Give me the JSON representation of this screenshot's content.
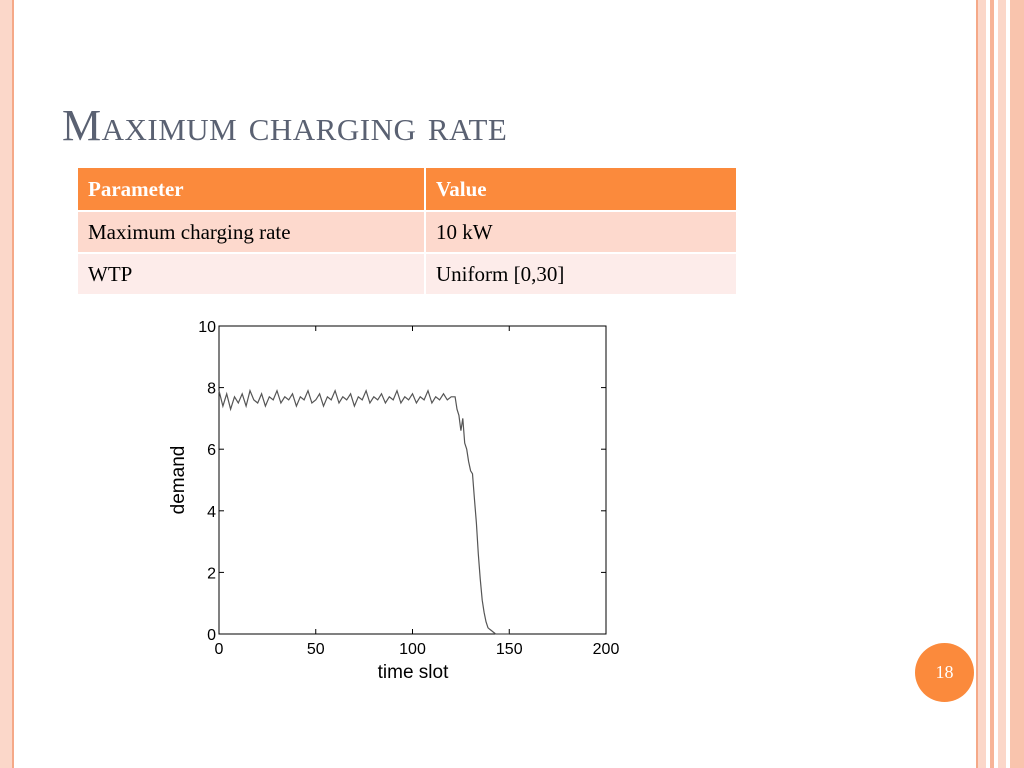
{
  "slide": {
    "title": "Maximum charging rate",
    "page_number": "18",
    "colors": {
      "accent": "#fb8a3c",
      "title": "#5a6172",
      "row_odd": "#fdd9cd",
      "row_even": "#fdecea"
    }
  },
  "table": {
    "headers": [
      "Parameter",
      "Value"
    ],
    "rows": [
      [
        "Maximum charging rate",
        "10 kW"
      ],
      [
        "WTP",
        "Uniform [0,30]"
      ]
    ]
  },
  "chart_data": {
    "type": "line",
    "title": "",
    "xlabel": "time slot",
    "ylabel": "demand",
    "xlim": [
      0,
      200
    ],
    "ylim": [
      0,
      10
    ],
    "xticks": [
      0,
      50,
      100,
      150,
      200
    ],
    "yticks": [
      0,
      2,
      4,
      6,
      8,
      10
    ],
    "grid": false,
    "series": [
      {
        "x": [
          0,
          2,
          4,
          6,
          8,
          10,
          12,
          14,
          16,
          18,
          20,
          22,
          24,
          26,
          28,
          30,
          32,
          34,
          36,
          38,
          40,
          42,
          44,
          46,
          48,
          50,
          52,
          54,
          56,
          58,
          60,
          62,
          64,
          66,
          68,
          70,
          72,
          74,
          76,
          78,
          80,
          82,
          84,
          86,
          88,
          90,
          92,
          94,
          96,
          98,
          100,
          102,
          104,
          106,
          108,
          110,
          112,
          114,
          116,
          118,
          120,
          122,
          123,
          124,
          125,
          126,
          127,
          128,
          129,
          130,
          131,
          132,
          133,
          134,
          135,
          136,
          137,
          138,
          139,
          140,
          141,
          142,
          143,
          144,
          145,
          146,
          148,
          150
        ],
        "y": [
          7.9,
          7.4,
          7.8,
          7.3,
          7.7,
          7.5,
          7.8,
          7.4,
          7.9,
          7.6,
          7.5,
          7.8,
          7.4,
          7.7,
          7.6,
          7.9,
          7.5,
          7.7,
          7.6,
          7.8,
          7.4,
          7.7,
          7.6,
          7.9,
          7.5,
          7.6,
          7.8,
          7.4,
          7.7,
          7.6,
          7.9,
          7.5,
          7.7,
          7.6,
          7.8,
          7.4,
          7.7,
          7.6,
          7.9,
          7.5,
          7.7,
          7.6,
          7.8,
          7.5,
          7.7,
          7.6,
          7.9,
          7.5,
          7.7,
          7.6,
          7.8,
          7.5,
          7.7,
          7.6,
          7.9,
          7.5,
          7.7,
          7.6,
          7.8,
          7.6,
          7.7,
          7.7,
          7.3,
          7.1,
          6.6,
          7.0,
          6.2,
          6.0,
          5.6,
          5.3,
          5.2,
          4.4,
          3.6,
          2.6,
          1.8,
          1.1,
          0.7,
          0.4,
          0.2,
          0.15,
          0.1,
          0.05,
          0,
          0,
          0,
          0,
          0,
          0
        ]
      }
    ]
  }
}
